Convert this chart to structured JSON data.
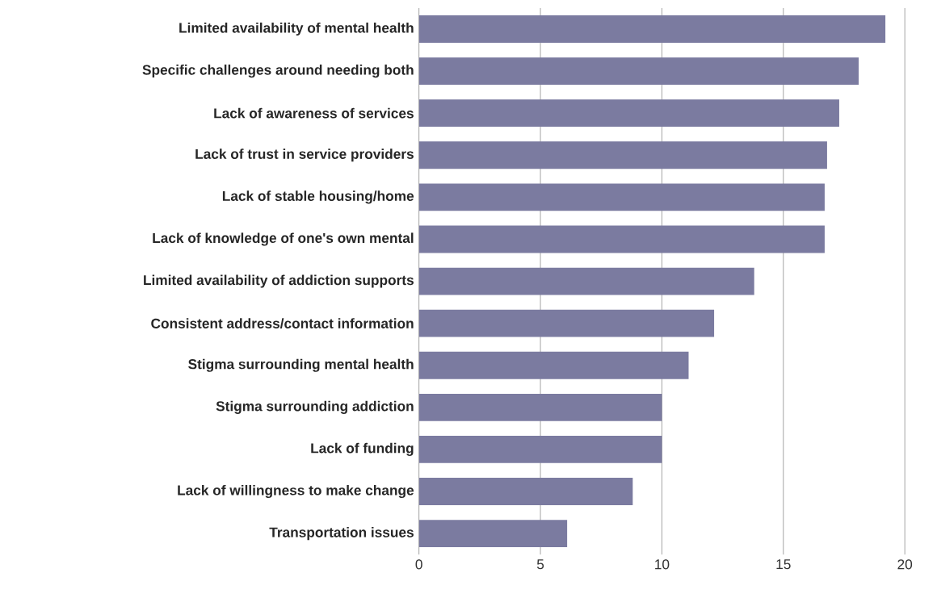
{
  "chart_data": {
    "type": "bar",
    "orientation": "horizontal",
    "categories": [
      "Limited availability of mental health",
      "Specific challenges around needing both",
      "Lack of awareness of services",
      "Lack of trust in service providers",
      "Lack of stable housing/home",
      "Lack of knowledge of one's own mental",
      "Limited availability of addiction supports",
      "Consistent address/contact information",
      "Stigma surrounding mental health",
      "Stigma surrounding addiction",
      "Lack of funding",
      "Lack of willingness to make change",
      "Transportation issues"
    ],
    "values": [
      19.2,
      18.1,
      17.3,
      16.8,
      16.7,
      16.7,
      13.8,
      12.15,
      11.1,
      10,
      10,
      8.8,
      6.1
    ],
    "color": "#7b7ba0",
    "xlim": [
      0,
      20
    ],
    "xticks": [
      0,
      5,
      10,
      15,
      20
    ],
    "grid": "x"
  }
}
